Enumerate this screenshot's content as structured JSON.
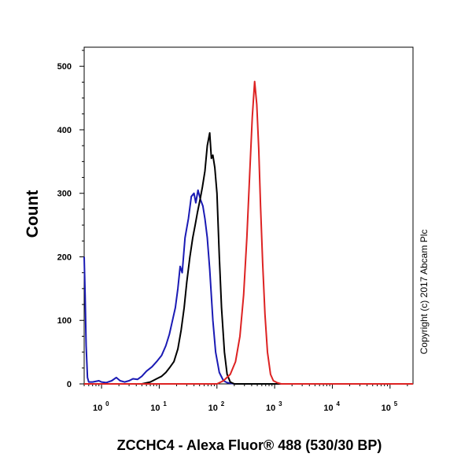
{
  "chart_data": {
    "type": "line",
    "title": "",
    "xlabel": "ZCCHC4 - Alexa Fluor® 488 (530/30 BP)",
    "ylabel": "Count",
    "x_scale": "log",
    "xlim": [
      0.5,
      250000
    ],
    "ylim": [
      0,
      530
    ],
    "yticks": [
      0,
      100,
      200,
      300,
      400,
      500
    ],
    "ytick_labels": [
      "0",
      "100",
      "200",
      "300",
      "400",
      "500"
    ],
    "xticks": [
      {
        "value": 1,
        "base": "10",
        "exp": "0"
      },
      {
        "value": 10,
        "base": "10",
        "exp": "1"
      },
      {
        "value": 100,
        "base": "10",
        "exp": "2"
      },
      {
        "value": 1000,
        "base": "10",
        "exp": "3"
      },
      {
        "value": 10000,
        "base": "10",
        "exp": "4"
      },
      {
        "value": 100000,
        "base": "10",
        "exp": "5"
      }
    ],
    "grid": false,
    "legend": false,
    "annotation": "Copyright (c) 2017 Abcam Plc",
    "series": [
      {
        "color": "#1a1ab4",
        "points": [
          [
            0.5,
            200
          ],
          [
            0.52,
            140
          ],
          [
            0.54,
            60
          ],
          [
            0.57,
            10
          ],
          [
            0.6,
            3
          ],
          [
            0.7,
            3
          ],
          [
            0.9,
            5
          ],
          [
            1.0,
            3
          ],
          [
            1.2,
            2
          ],
          [
            1.5,
            5
          ],
          [
            1.8,
            10
          ],
          [
            2.1,
            5
          ],
          [
            2.5,
            3
          ],
          [
            3,
            5
          ],
          [
            3.5,
            8
          ],
          [
            4.2,
            7
          ],
          [
            5,
            12
          ],
          [
            6,
            20
          ],
          [
            7.5,
            27
          ],
          [
            9,
            35
          ],
          [
            11,
            45
          ],
          [
            13,
            60
          ],
          [
            15,
            78
          ],
          [
            17,
            100
          ],
          [
            19,
            120
          ],
          [
            21,
            150
          ],
          [
            23,
            185
          ],
          [
            25,
            175
          ],
          [
            28,
            230
          ],
          [
            32,
            260
          ],
          [
            36,
            295
          ],
          [
            40,
            300
          ],
          [
            43,
            285
          ],
          [
            47,
            305
          ],
          [
            52,
            290
          ],
          [
            57,
            280
          ],
          [
            62,
            260
          ],
          [
            68,
            230
          ],
          [
            75,
            180
          ],
          [
            85,
            100
          ],
          [
            95,
            50
          ],
          [
            110,
            18
          ],
          [
            130,
            5
          ],
          [
            150,
            2
          ],
          [
            200,
            0
          ],
          [
            100000,
            0
          ],
          [
            250000,
            0
          ]
        ]
      },
      {
        "color": "#000000",
        "points": [
          [
            0.5,
            0
          ],
          [
            5,
            0
          ],
          [
            7,
            3
          ],
          [
            9,
            8
          ],
          [
            11,
            12
          ],
          [
            13,
            18
          ],
          [
            15,
            25
          ],
          [
            18,
            35
          ],
          [
            21,
            55
          ],
          [
            24,
            85
          ],
          [
            27,
            120
          ],
          [
            30,
            160
          ],
          [
            34,
            200
          ],
          [
            38,
            230
          ],
          [
            42,
            250
          ],
          [
            46,
            270
          ],
          [
            51,
            290
          ],
          [
            56,
            310
          ],
          [
            62,
            335
          ],
          [
            68,
            375
          ],
          [
            75,
            395
          ],
          [
            80,
            355
          ],
          [
            85,
            360
          ],
          [
            92,
            340
          ],
          [
            100,
            300
          ],
          [
            110,
            200
          ],
          [
            120,
            120
          ],
          [
            135,
            50
          ],
          [
            150,
            15
          ],
          [
            170,
            3
          ],
          [
            200,
            0
          ],
          [
            100000,
            0
          ],
          [
            250000,
            0
          ]
        ]
      },
      {
        "color": "#dd2222",
        "points": [
          [
            0.5,
            0
          ],
          [
            100,
            0
          ],
          [
            130,
            5
          ],
          [
            170,
            15
          ],
          [
            210,
            35
          ],
          [
            250,
            75
          ],
          [
            290,
            140
          ],
          [
            330,
            230
          ],
          [
            370,
            330
          ],
          [
            410,
            420
          ],
          [
            450,
            476
          ],
          [
            490,
            440
          ],
          [
            530,
            370
          ],
          [
            570,
            280
          ],
          [
            620,
            190
          ],
          [
            680,
            110
          ],
          [
            750,
            50
          ],
          [
            850,
            15
          ],
          [
            950,
            5
          ],
          [
            1100,
            2
          ],
          [
            1300,
            0
          ],
          [
            100000,
            0
          ],
          [
            250000,
            0
          ]
        ]
      }
    ]
  }
}
